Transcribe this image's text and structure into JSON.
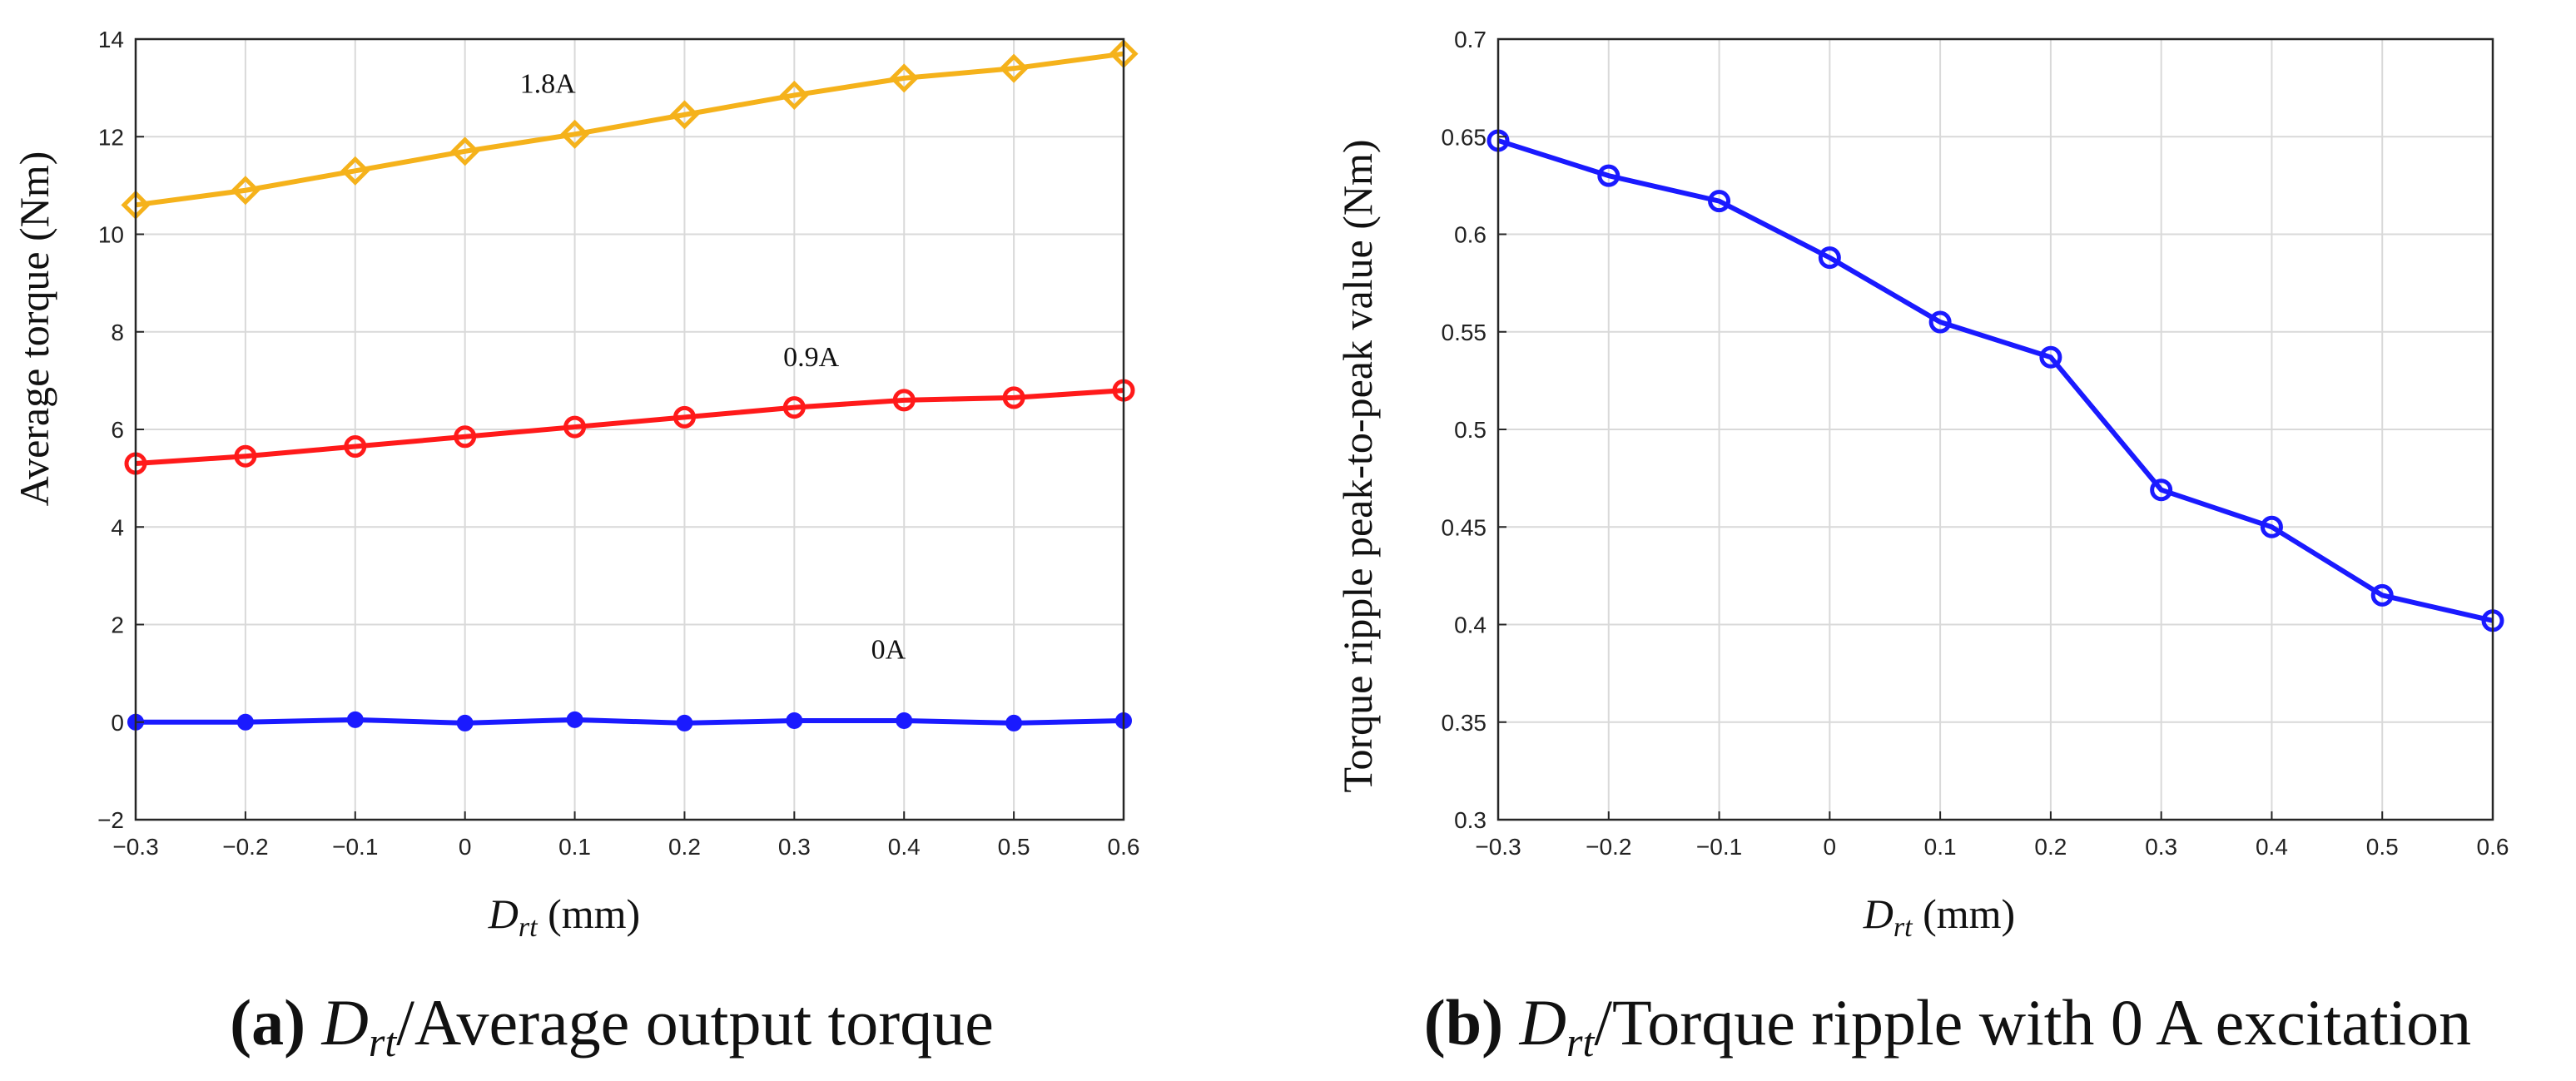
{
  "chart_data": [
    {
      "type": "line",
      "panel": "a",
      "x": [
        -0.3,
        -0.2,
        -0.1,
        0,
        0.1,
        0.2,
        0.3,
        0.4,
        0.5,
        0.6
      ],
      "xtick_labels": [
        "−0.3",
        "−0.2",
        "−0.1",
        "0",
        "0.1",
        "0.2",
        "0.3",
        "0.4",
        "0.5",
        "0.6"
      ],
      "yticks": [
        -2,
        0,
        2,
        4,
        6,
        8,
        10,
        12,
        14
      ],
      "ytick_labels": [
        "−2",
        "0",
        "2",
        "4",
        "6",
        "8",
        "10",
        "12",
        "14"
      ],
      "xlim": [
        -0.3,
        0.6
      ],
      "ylim": [
        -2,
        14
      ],
      "grid": true,
      "xlabel_main": "D",
      "xlabel_sub": "rt",
      "xlabel_unit": " (mm)",
      "ylabel": "Average torque (Nm)",
      "series": [
        {
          "name": "1.8A",
          "color": "#f5b21b",
          "marker": "diamond",
          "values": [
            10.6,
            10.9,
            11.3,
            11.7,
            12.05,
            12.45,
            12.85,
            13.2,
            13.4,
            13.7
          ]
        },
        {
          "name": "0.9A",
          "color": "#ff1a1a",
          "marker": "circle",
          "values": [
            5.3,
            5.45,
            5.65,
            5.85,
            6.05,
            6.25,
            6.45,
            6.6,
            6.65,
            6.8
          ]
        },
        {
          "name": "0A",
          "color": "#1a1aff",
          "marker": "dot",
          "values": [
            0,
            0,
            0.05,
            -0.02,
            0.05,
            -0.02,
            0.03,
            0.03,
            -0.02,
            0.03
          ]
        }
      ],
      "annotations": [
        {
          "text": "1.8A",
          "x": 0.05,
          "y": 12.9
        },
        {
          "text": "0.9A",
          "x": 0.29,
          "y": 7.3
        },
        {
          "text": "0A",
          "x": 0.37,
          "y": 1.3
        }
      ],
      "caption_label": "(a)",
      "caption_main": "D",
      "caption_sub": "rt",
      "caption_text": "/Average output torque"
    },
    {
      "type": "line",
      "panel": "b",
      "x": [
        -0.3,
        -0.2,
        -0.1,
        0,
        0.1,
        0.2,
        0.3,
        0.4,
        0.5,
        0.6
      ],
      "xtick_labels": [
        "−0.3",
        "−0.2",
        "−0.1",
        "0",
        "0.1",
        "0.2",
        "0.3",
        "0.4",
        "0.5",
        "0.6"
      ],
      "yticks": [
        0.3,
        0.35,
        0.4,
        0.45,
        0.5,
        0.55,
        0.6,
        0.65,
        0.7
      ],
      "ytick_labels": [
        "0.3",
        "0.35",
        "0.4",
        "0.45",
        "0.5",
        "0.55",
        "0.6",
        "0.65",
        "0.7"
      ],
      "xlim": [
        -0.3,
        0.6
      ],
      "ylim": [
        0.3,
        0.7
      ],
      "grid": true,
      "xlabel_main": "D",
      "xlabel_sub": "rt",
      "xlabel_unit": " (mm)",
      "ylabel": "Torque ripple  peak-to-peak value (Nm)",
      "series": [
        {
          "name": "0A",
          "color": "#1a1aff",
          "marker": "circle",
          "values": [
            0.648,
            0.63,
            0.617,
            0.588,
            0.555,
            0.537,
            0.469,
            0.45,
            0.415,
            0.402
          ]
        }
      ],
      "annotations": [],
      "caption_label": "(b)",
      "caption_main": "D",
      "caption_sub": "rt",
      "caption_text": "/Torque ripple with 0 A excitation"
    }
  ]
}
